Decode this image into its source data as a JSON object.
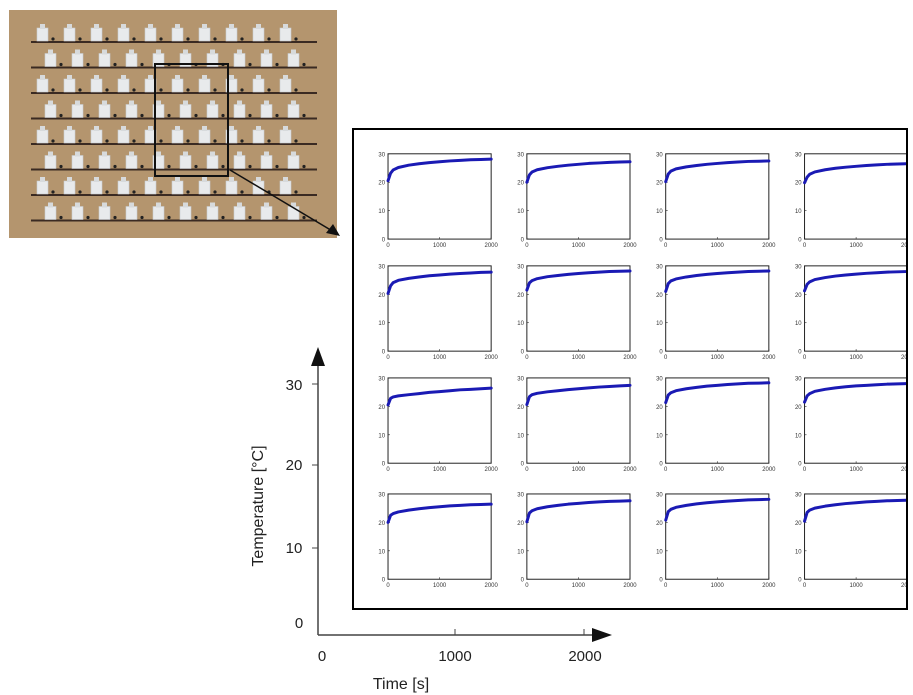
{
  "photo": {
    "description_icon": "sensor-array-photo",
    "board_color": "#b4956e",
    "rows": 8,
    "cols": 10,
    "highlight_cols": [
      4,
      6
    ],
    "highlight_rows": [
      1,
      4
    ]
  },
  "main_axes": {
    "ylabel": "Temperature [°C]",
    "xlabel": "Time [s]",
    "yticks": [
      "0",
      "10",
      "20",
      "30"
    ],
    "xticks": [
      "0",
      "1000",
      "2000"
    ]
  },
  "small_multiples": {
    "ytick_labels": [
      "0",
      "10",
      "20",
      "30"
    ],
    "xtick_labels": [
      "0",
      "1000",
      "2000"
    ]
  },
  "chart_data": {
    "type": "line",
    "title": "",
    "xlabel": "Time [s]",
    "ylabel": "Temperature [°C]",
    "xlim": [
      0,
      2000
    ],
    "ylim": [
      0,
      30
    ],
    "grid": false,
    "line_color": "#1a1ab4",
    "layout": "4x4 grid of small-multiple line plots",
    "x": [
      0,
      50,
      100,
      200,
      400,
      600,
      800,
      1000,
      1200,
      1400,
      1600,
      1800,
      2000
    ],
    "panels": [
      {
        "series": [
          {
            "values": [
              20.5,
              23.2,
              24.3,
              25.2,
              26.0,
              26.5,
              26.9,
              27.2,
              27.5,
              27.7,
              27.9,
              28.0,
              28.1
            ]
          }
        ]
      },
      {
        "series": [
          {
            "values": [
              20.0,
              22.6,
              23.6,
              24.4,
              25.1,
              25.6,
              26.0,
              26.3,
              26.6,
              26.8,
              27.0,
              27.1,
              27.2
            ]
          }
        ]
      },
      {
        "series": [
          {
            "values": [
              20.2,
              22.9,
              23.9,
              24.7,
              25.4,
              25.9,
              26.3,
              26.6,
              26.9,
              27.1,
              27.3,
              27.4,
              27.5
            ]
          }
        ]
      },
      {
        "series": [
          {
            "values": [
              19.8,
              21.8,
              22.8,
              23.6,
              24.4,
              24.9,
              25.3,
              25.6,
              25.9,
              26.1,
              26.3,
              26.4,
              26.5
            ]
          }
        ]
      },
      {
        "series": [
          {
            "values": [
              20.3,
              23.0,
              24.1,
              24.9,
              25.6,
              26.1,
              26.5,
              26.8,
              27.1,
              27.3,
              27.5,
              27.7,
              27.8
            ]
          }
        ]
      },
      {
        "series": [
          {
            "values": [
              21.5,
              24.0,
              24.8,
              25.5,
              26.2,
              26.6,
              27.0,
              27.3,
              27.6,
              27.8,
              28.0,
              28.1,
              28.2
            ]
          }
        ]
      },
      {
        "series": [
          {
            "values": [
              21.0,
              23.8,
              24.7,
              25.4,
              26.1,
              26.6,
              27.0,
              27.3,
              27.6,
              27.8,
              28.0,
              28.1,
              28.2
            ]
          }
        ]
      },
      {
        "series": [
          {
            "values": [
              21.2,
              23.5,
              24.4,
              25.2,
              25.9,
              26.4,
              26.8,
              27.1,
              27.4,
              27.6,
              27.8,
              27.9,
              28.0
            ]
          }
        ]
      },
      {
        "series": [
          {
            "values": [
              20.5,
              22.8,
              23.3,
              23.7,
              24.1,
              24.5,
              24.9,
              25.2,
              25.5,
              25.8,
              26.0,
              26.2,
              26.4
            ]
          }
        ]
      },
      {
        "series": [
          {
            "values": [
              20.6,
              23.4,
              24.1,
              24.6,
              25.1,
              25.5,
              25.9,
              26.2,
              26.5,
              26.8,
              27.0,
              27.2,
              27.4
            ]
          }
        ]
      },
      {
        "series": [
          {
            "values": [
              21.3,
              24.0,
              24.8,
              25.5,
              26.2,
              26.7,
              27.1,
              27.4,
              27.7,
              27.9,
              28.1,
              28.2,
              28.3
            ]
          }
        ]
      },
      {
        "series": [
          {
            "values": [
              21.5,
              23.7,
              24.5,
              25.3,
              26.0,
              26.5,
              26.9,
              27.2,
              27.4,
              27.6,
              27.8,
              27.9,
              28.0
            ]
          }
        ]
      },
      {
        "series": [
          {
            "values": [
              20.0,
              22.5,
              23.1,
              23.7,
              24.3,
              24.8,
              25.2,
              25.5,
              25.8,
              26.0,
              26.2,
              26.3,
              26.4
            ]
          }
        ]
      },
      {
        "series": [
          {
            "values": [
              20.2,
              23.3,
              24.1,
              24.8,
              25.5,
              26.0,
              26.4,
              26.7,
              27.0,
              27.2,
              27.4,
              27.5,
              27.6
            ]
          }
        ]
      },
      {
        "series": [
          {
            "values": [
              20.8,
              23.8,
              24.6,
              25.3,
              26.0,
              26.5,
              26.9,
              27.2,
              27.5,
              27.7,
              27.9,
              28.0,
              28.1
            ]
          }
        ]
      },
      {
        "series": [
          {
            "values": [
              20.4,
              23.5,
              24.3,
              25.0,
              25.7,
              26.2,
              26.6,
              26.9,
              27.2,
              27.4,
              27.6,
              27.7,
              27.8
            ]
          }
        ]
      }
    ]
  }
}
